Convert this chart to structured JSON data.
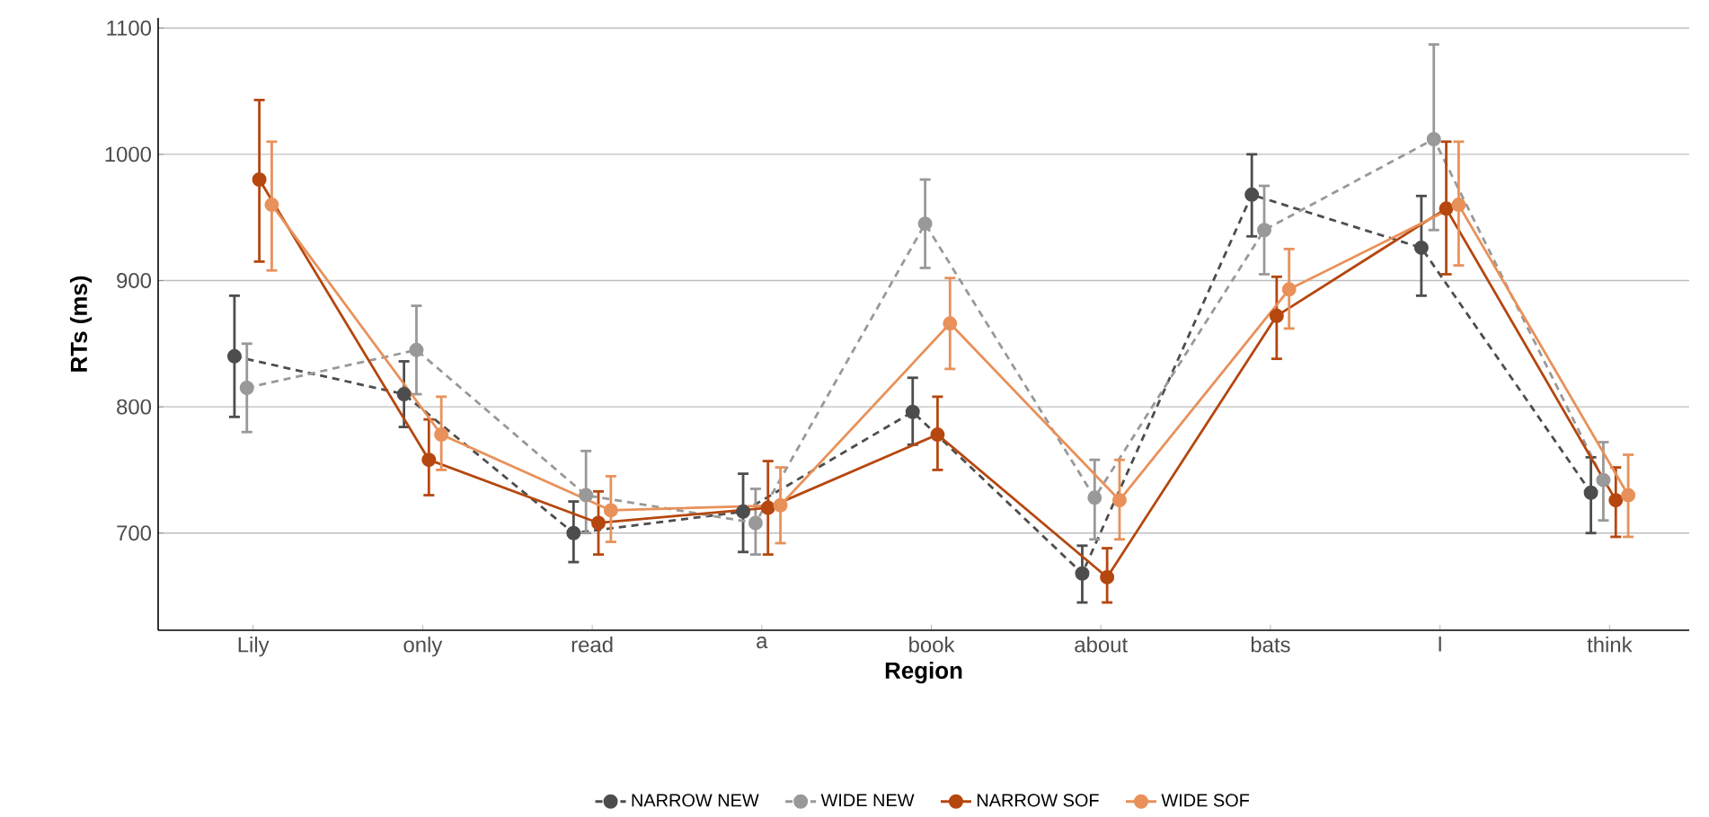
{
  "chart_data": {
    "type": "line",
    "xlabel": "Region",
    "ylabel": "RTs (ms)",
    "categories": [
      "Lily",
      "only",
      "read",
      "a",
      "book",
      "about",
      "bats",
      "I",
      "think"
    ],
    "ylim": [
      623,
      1108
    ],
    "yticks": [
      700,
      800,
      900,
      1000,
      1100
    ],
    "grid": "y",
    "legend": "bottom",
    "marker": "circle",
    "series": [
      {
        "name": "NARROW NEW",
        "color": "#4d4d4d",
        "line_style": "dashed",
        "values": [
          840,
          810,
          700,
          717,
          796,
          668,
          968,
          926,
          732
        ],
        "errors": [
          [
            792,
            888
          ],
          [
            784,
            836
          ],
          [
            677,
            725
          ],
          [
            685,
            747
          ],
          [
            770,
            823
          ],
          [
            645,
            690
          ],
          [
            935,
            1000
          ],
          [
            888,
            967
          ],
          [
            700,
            760
          ]
        ]
      },
      {
        "name": "WIDE NEW",
        "color": "#999999",
        "line_style": "dashed",
        "values": [
          815,
          845,
          730,
          708,
          945,
          728,
          940,
          1012,
          742
        ],
        "errors": [
          [
            780,
            850
          ],
          [
            810,
            880
          ],
          [
            700,
            765
          ],
          [
            683,
            735
          ],
          [
            910,
            980
          ],
          [
            695,
            758
          ],
          [
            905,
            975
          ],
          [
            940,
            1087
          ],
          [
            710,
            772
          ]
        ]
      },
      {
        "name": "NARROW SOF",
        "color": "#b5470f",
        "line_style": "solid",
        "values": [
          980,
          758,
          708,
          720,
          778,
          665,
          872,
          957,
          726
        ],
        "errors": [
          [
            915,
            1043
          ],
          [
            730,
            790
          ],
          [
            683,
            733
          ],
          [
            683,
            757
          ],
          [
            750,
            808
          ],
          [
            645,
            688
          ],
          [
            838,
            903
          ],
          [
            905,
            1010
          ],
          [
            697,
            752
          ]
        ]
      },
      {
        "name": "WIDE SOF",
        "color": "#e8915a",
        "line_style": "solid",
        "values": [
          960,
          778,
          718,
          722,
          866,
          726,
          893,
          960,
          730
        ],
        "errors": [
          [
            908,
            1010
          ],
          [
            750,
            808
          ],
          [
            693,
            745
          ],
          [
            692,
            752
          ],
          [
            830,
            902
          ],
          [
            695,
            758
          ],
          [
            862,
            925
          ],
          [
            912,
            1010
          ],
          [
            697,
            762
          ]
        ]
      }
    ]
  }
}
